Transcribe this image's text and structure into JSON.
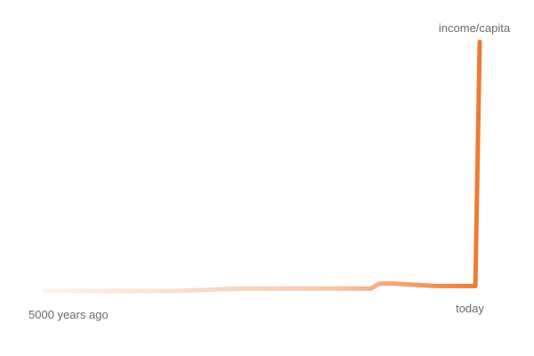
{
  "chart_data": {
    "type": "line",
    "title": "",
    "xlabel": "",
    "ylabel": "income/capita",
    "x_start_label": "5000 years ago",
    "x_end_label": "today",
    "grid": false,
    "legend": "none",
    "series": [
      {
        "color_start": "#fff2ea",
        "color_end": "#f07a32",
        "points": [
          {
            "x": 0.0,
            "y": 0.0
          },
          {
            "x": 0.15,
            "y": 0.0
          },
          {
            "x": 0.3,
            "y": 0.0
          },
          {
            "x": 0.45,
            "y": 0.01
          },
          {
            "x": 0.6,
            "y": 0.01
          },
          {
            "x": 0.75,
            "y": 0.01
          },
          {
            "x": 0.77,
            "y": 0.03
          },
          {
            "x": 0.8,
            "y": 0.03
          },
          {
            "x": 0.9,
            "y": 0.02
          },
          {
            "x": 0.99,
            "y": 0.02
          },
          {
            "x": 1.0,
            "y": 1.0
          }
        ]
      }
    ]
  }
}
